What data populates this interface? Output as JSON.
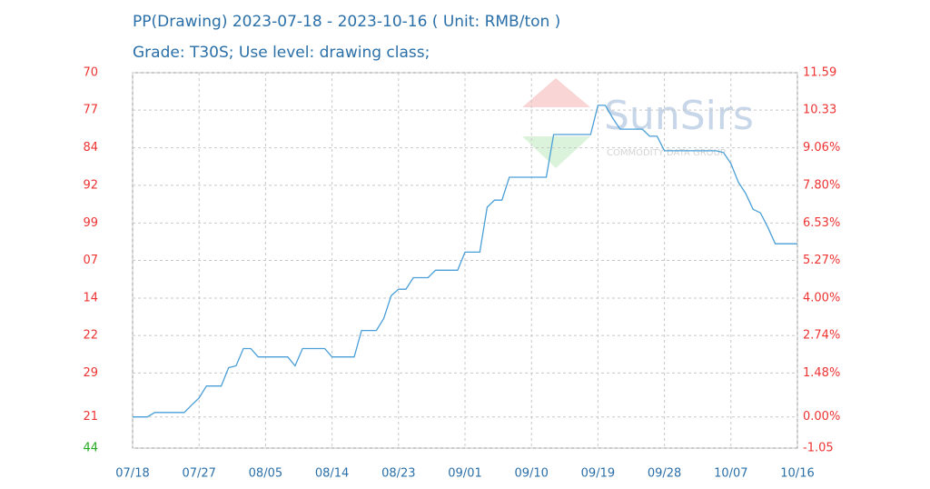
{
  "chart_data": {
    "type": "line",
    "title": "PP(Drawing) 2023-07-18 - 2023-10-16     ( Unit: RMB/ton )",
    "subtitle": "Grade: T30S; Use level: drawing class;",
    "watermark": "SunSirs",
    "watermark_sub": "COMMODITY DATA GROUP",
    "categories": [
      "07/18",
      null,
      null,
      null,
      null,
      null,
      null,
      null,
      null,
      "07/27",
      null,
      null,
      null,
      null,
      null,
      null,
      null,
      null,
      "08/05",
      null,
      null,
      null,
      null,
      null,
      null,
      null,
      null,
      "08/14",
      null,
      null,
      null,
      null,
      null,
      null,
      null,
      null,
      "08/23",
      null,
      null,
      null,
      null,
      null,
      null,
      null,
      null,
      "09/01",
      null,
      null,
      null,
      null,
      null,
      null,
      null,
      null,
      "09/10",
      null,
      null,
      null,
      null,
      null,
      null,
      null,
      null,
      "09/19",
      null,
      null,
      null,
      null,
      null,
      null,
      null,
      null,
      "09/28",
      null,
      null,
      null,
      null,
      null,
      null,
      null,
      null,
      "10/07",
      null,
      null,
      null,
      null,
      null,
      null,
      null,
      null,
      "10/16"
    ],
    "series": [
      {
        "name": "PP(Drawing)",
        "color": "#4a9fd8",
        "axis": "y2",
        "values": [
          0,
          0,
          0,
          0.15,
          0.15,
          0.15,
          0.15,
          0.15,
          0.4,
          0.64,
          1.04,
          1.04,
          1.04,
          1.66,
          1.72,
          2.3,
          2.3,
          2.02,
          2.02,
          2.02,
          2.02,
          2.02,
          1.72,
          2.3,
          2.3,
          2.3,
          2.3,
          2.02,
          2.02,
          2.02,
          2.02,
          2.91,
          2.91,
          2.91,
          3.31,
          4.08,
          4.3,
          4.3,
          4.69,
          4.69,
          4.69,
          4.94,
          4.94,
          4.94,
          4.94,
          5.55,
          5.55,
          5.55,
          7.06,
          7.3,
          7.3,
          8.07,
          8.07,
          8.07,
          8.07,
          8.07,
          8.07,
          9.51,
          9.51,
          9.51,
          9.51,
          9.51,
          9.51,
          10.49,
          10.49,
          10.06,
          9.69,
          9.69,
          9.69,
          9.69,
          9.45,
          9.45,
          8.96,
          8.96,
          8.96,
          8.96,
          8.96,
          8.96,
          8.96,
          8.96,
          8.9,
          8.53,
          7.91,
          7.52,
          6.99,
          6.87,
          6.38,
          5.83,
          5.83,
          5.83,
          5.83
        ]
      }
    ],
    "y_labels": [
      "70",
      "77",
      "84",
      "92",
      "99",
      "07",
      "14",
      "22",
      "29",
      "21",
      "44"
    ],
    "y2lim": [
      -1.05,
      11.59
    ],
    "y2ticks": [
      {
        "value": 11.59,
        "label": "11.59"
      },
      {
        "value": 10.33,
        "label": "10.33"
      },
      {
        "value": 9.06,
        "label": "9.06%"
      },
      {
        "value": 7.8,
        "label": "7.80%"
      },
      {
        "value": 6.53,
        "label": "6.53%"
      },
      {
        "value": 5.27,
        "label": "5.27%"
      },
      {
        "value": 4.0,
        "label": "4.00%"
      },
      {
        "value": 2.74,
        "label": "2.74%"
      },
      {
        "value": 1.48,
        "label": "1.48%"
      },
      {
        "value": 0,
        "label": "0.00%"
      },
      {
        "value": -1.05,
        "label": "-1.05"
      }
    ],
    "grid": true
  }
}
